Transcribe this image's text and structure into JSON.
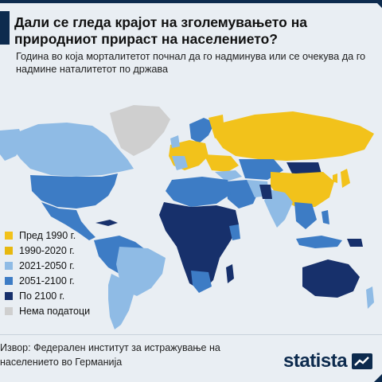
{
  "title": "Дали се гледа крајот на зголемувањето на природниот прираст на населението?",
  "subtitle": "Година во која морталитетот почнал да го надминува или се очекува да го надмине наталитетот по држава",
  "legend": [
    {
      "label": "Пред 1990 г.",
      "color": "#f2c21b"
    },
    {
      "label": "1990-2020 г.",
      "color": "#e7b80f"
    },
    {
      "label": "2021-2050 г.",
      "color": "#8fbbe5"
    },
    {
      "label": "2051-2100 г.",
      "color": "#3d7cc5"
    },
    {
      "label": "По 2100 г.",
      "color": "#17306b"
    },
    {
      "label": "Нема податоци",
      "color": "#cfcfcf"
    }
  ],
  "source": "Извор: Федерален институт за истражување на населението во Германија",
  "logo": {
    "text": "statista"
  }
}
